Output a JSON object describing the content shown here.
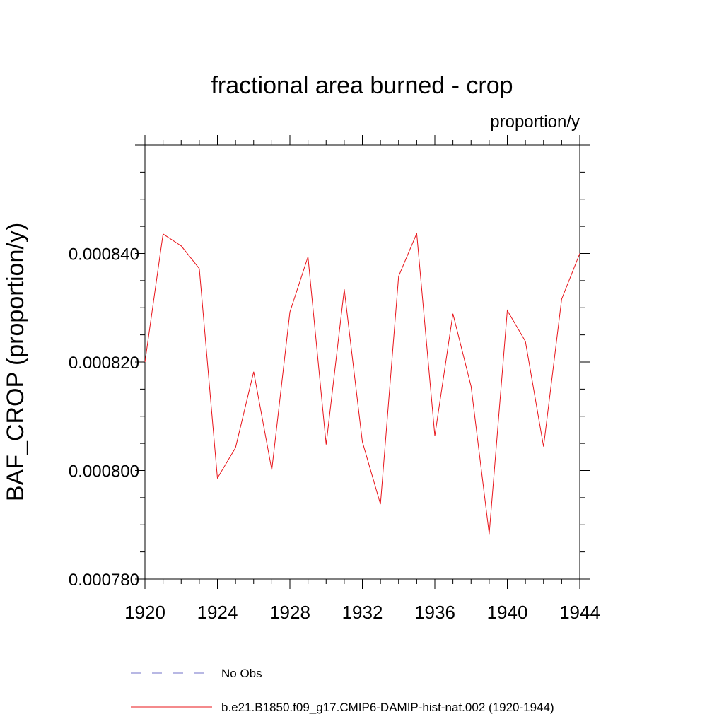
{
  "chart_data": {
    "type": "line",
    "title": "fractional area burned - crop",
    "units_label": "proportion/y",
    "ylabel": "BAF_CROP  (proportion/y)",
    "xlabel": "",
    "xlim": [
      1920,
      1944
    ],
    "ylim": [
      0.00078,
      0.00086
    ],
    "x_ticks": [
      1920,
      1924,
      1928,
      1932,
      1936,
      1940,
      1944
    ],
    "x_tick_labels": [
      "1920",
      "1924",
      "1928",
      "1932",
      "1936",
      "1940",
      "1944"
    ],
    "y_ticks": [
      0.00078,
      0.0008,
      0.00082,
      0.00084
    ],
    "y_tick_labels": [
      "0.000780",
      "0.000800",
      "0.000820",
      "0.000840"
    ],
    "y_minor_step": 5e-06,
    "x_minor_step": 1,
    "grid": false,
    "legend_position": "bottom",
    "series": [
      {
        "name": "b.e21.B1850.f09_g17.CMIP6-DAMIP-hist-nat.002 (1920-1944)",
        "color": "#e8141a",
        "style": "solid",
        "x": [
          1920,
          1921,
          1922,
          1923,
          1924,
          1925,
          1926,
          1927,
          1928,
          1929,
          1930,
          1931,
          1932,
          1933,
          1934,
          1935,
          1936,
          1937,
          1938,
          1939,
          1940,
          1941,
          1942,
          1943,
          1944
        ],
        "values": [
          0.00082,
          0.0008436,
          0.0008414,
          0.0008372,
          0.0007986,
          0.0008042,
          0.0008182,
          0.0008001,
          0.0008292,
          0.0008394,
          0.0008048,
          0.0008334,
          0.0008053,
          0.0007938,
          0.0008358,
          0.0008437,
          0.0008064,
          0.0008289,
          0.0008155,
          0.0007883,
          0.0008295,
          0.0008238,
          0.0008044,
          0.0008316,
          0.00084
        ]
      }
    ],
    "legend": [
      {
        "label": "No Obs",
        "color": "#7070c8",
        "style": "dashed"
      },
      {
        "label": "b.e21.B1850.f09_g17.CMIP6-DAMIP-hist-nat.002 (1920-1944)",
        "color": "#e8141a",
        "style": "solid"
      }
    ]
  }
}
